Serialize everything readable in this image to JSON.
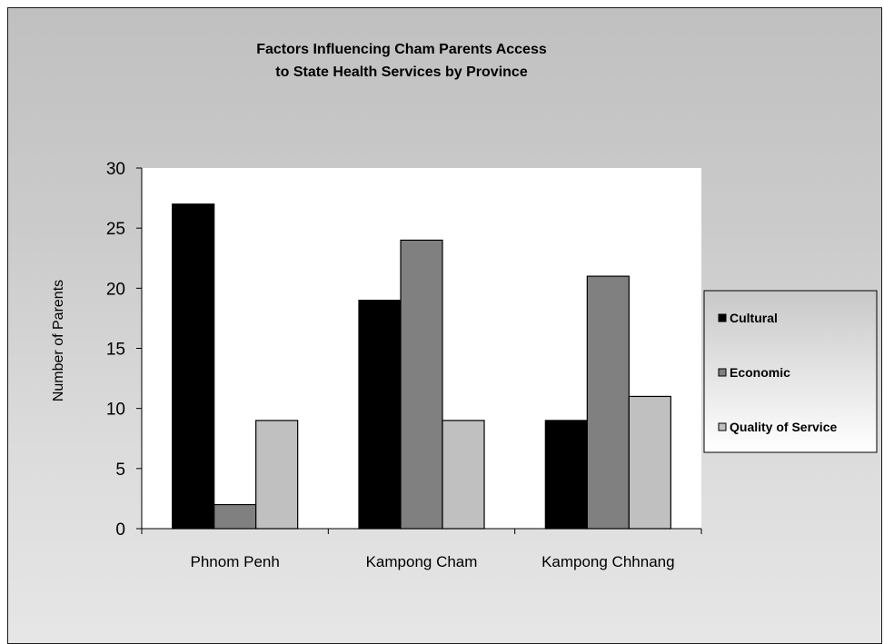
{
  "chart_data": {
    "type": "bar",
    "title_lines": [
      "Factors Influencing Cham Parents Access",
      "to State Health Services by Province"
    ],
    "xlabel": "",
    "ylabel": "Number of Parents",
    "ylim": [
      0,
      30
    ],
    "yticks": [
      0,
      5,
      10,
      15,
      20,
      25,
      30
    ],
    "categories": [
      "Phnom Penh",
      "Kampong Cham",
      "Kampong Chhnang"
    ],
    "series": [
      {
        "name": "Cultural",
        "color": "#000000",
        "values": [
          27,
          19,
          9
        ]
      },
      {
        "name": "Economic",
        "color": "#808080",
        "values": [
          2,
          24,
          21
        ]
      },
      {
        "name": "Quality of Service",
        "color": "#c0c0c0",
        "values": [
          9,
          9,
          11
        ]
      }
    ],
    "grid": false,
    "legend_position": "right"
  }
}
